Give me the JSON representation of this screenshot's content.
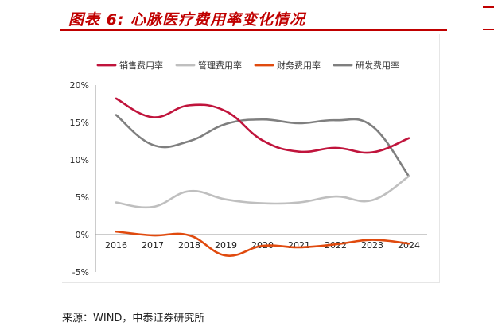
{
  "header": {
    "title": "图表 6:  心脉医疗费用率变化情况"
  },
  "footer": {
    "source": "来源：WIND，中泰证券研究所"
  },
  "colors": {
    "brand": "#c00000"
  },
  "chart_data": {
    "type": "line",
    "title": "",
    "xlabel": "",
    "ylabel": "",
    "categories": [
      "2016",
      "2017",
      "2018",
      "2019",
      "2020",
      "2021",
      "2022",
      "2023",
      "2024"
    ],
    "ylim": [
      -5,
      20
    ],
    "yticks": [
      -5,
      0,
      5,
      10,
      15,
      20
    ],
    "ytick_labels": [
      "-5%",
      "0%",
      "5%",
      "10%",
      "15%",
      "20%"
    ],
    "grid": false,
    "legend_position": "top",
    "series": [
      {
        "name": "销售费用率",
        "color": "#c0143c",
        "values": [
          18.2,
          15.7,
          17.3,
          16.5,
          12.6,
          11.1,
          11.6,
          11.0,
          12.9
        ]
      },
      {
        "name": "管理费用率",
        "color": "#bfbfbf",
        "values": [
          4.3,
          3.7,
          5.8,
          4.7,
          4.2,
          4.3,
          5.1,
          4.6,
          7.8
        ]
      },
      {
        "name": "财务费用率",
        "color": "#e04a0e",
        "values": [
          0.4,
          -0.1,
          -0.1,
          -2.8,
          -1.5,
          -1.7,
          -1.3,
          -0.7,
          -1.2
        ]
      },
      {
        "name": "研发费用率",
        "color": "#7f7f7f",
        "values": [
          16.0,
          12.0,
          12.5,
          14.8,
          15.4,
          14.9,
          15.3,
          14.5,
          7.8
        ]
      }
    ]
  }
}
